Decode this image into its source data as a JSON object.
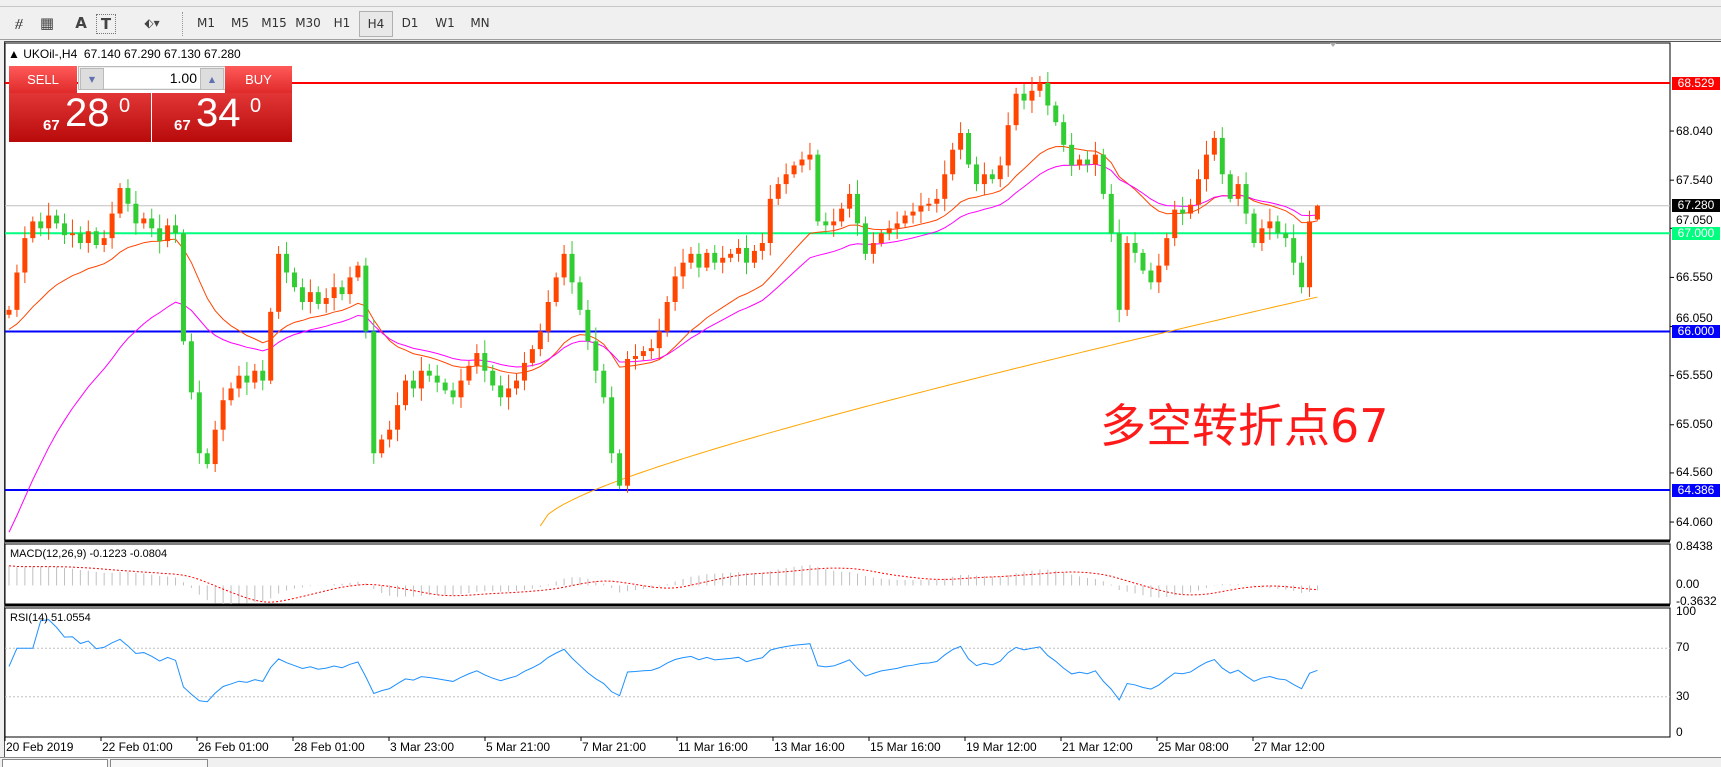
{
  "toolbar": {
    "tools": [
      {
        "name": "fibonacci-expansion-icon",
        "glyph": "⧣"
      },
      {
        "name": "fibonacci-fan-icon",
        "glyph": "▦"
      },
      {
        "name": "text-icon",
        "glyph": "A"
      },
      {
        "name": "text-label-icon",
        "glyph": "T"
      },
      {
        "name": "arrows-icon",
        "glyph": "⬖▾"
      }
    ],
    "timeframes": [
      "M1",
      "M5",
      "M15",
      "M30",
      "H1",
      "H4",
      "D1",
      "W1",
      "MN"
    ],
    "active_timeframe": "H4"
  },
  "chart": {
    "title": "UKOil-,H4  67.140 67.290 67.130 67.280",
    "symbol": "UKOil-",
    "timeframe": "H4",
    "ohlc": {
      "open": 67.14,
      "high": 67.29,
      "low": 67.13,
      "close": 67.28
    },
    "annotation": "多空转折点67",
    "annotation_color": "#ff1a1a",
    "price_ticks": [
      "68.040",
      "67.540",
      "67.050",
      "66.550",
      "66.050",
      "65.550",
      "65.050",
      "64.560",
      "64.060"
    ],
    "hlines": [
      {
        "price": 68.529,
        "label": "68.529",
        "color": "#ff0000"
      },
      {
        "price": 67.28,
        "label": "67.280",
        "color": "#c0c0c0",
        "tag_color": "#000000"
      },
      {
        "price": 67.0,
        "label": "67.000",
        "color": "#00ff7f"
      },
      {
        "price": 66.0,
        "label": "66.000",
        "color": "#0000ff"
      },
      {
        "price": 64.386,
        "label": "64.386",
        "color": "#0000ff"
      }
    ],
    "colors": {
      "up": "#ff4500",
      "down": "#32cd32",
      "ma_fast": "#ff4500",
      "ma_mid": "#ff00ff",
      "ma_slow": "#ffa500"
    },
    "closes": [
      66.22,
      66.6,
      66.95,
      67.12,
      67.05,
      67.18,
      67.1,
      66.98,
      67.0,
      66.9,
      67.02,
      66.88,
      66.95,
      67.2,
      67.46,
      67.3,
      67.1,
      67.15,
      67.05,
      66.92,
      67.08,
      67.0,
      65.9,
      65.38,
      64.76,
      64.65,
      65.0,
      65.3,
      65.42,
      65.55,
      65.48,
      65.6,
      65.5,
      66.2,
      66.79,
      66.6,
      66.45,
      66.3,
      66.4,
      66.28,
      66.34,
      66.45,
      66.38,
      66.55,
      66.67,
      66.0,
      64.76,
      64.9,
      65.0,
      65.25,
      65.5,
      65.42,
      65.6,
      65.55,
      65.48,
      65.4,
      65.33,
      65.5,
      65.65,
      65.78,
      65.6,
      65.45,
      65.33,
      65.42,
      65.5,
      65.68,
      65.82,
      66.0,
      66.3,
      66.55,
      66.79,
      66.5,
      66.22,
      65.9,
      65.6,
      65.33,
      64.76,
      64.43,
      65.72,
      65.75,
      65.8,
      65.83,
      66.0,
      66.3,
      66.56,
      66.7,
      66.79,
      66.65,
      66.8,
      66.7,
      66.75,
      66.79,
      66.85,
      66.7,
      66.82,
      66.9,
      67.35,
      67.5,
      67.6,
      67.69,
      67.75,
      67.8,
      67.12,
      67.08,
      67.12,
      67.25,
      67.4,
      67.1,
      66.79,
      66.9,
      67.0,
      67.05,
      67.1,
      67.18,
      67.22,
      67.28,
      67.3,
      67.35,
      67.6,
      67.85,
      68.02,
      67.7,
      67.5,
      67.6,
      67.55,
      67.69,
      68.1,
      68.42,
      68.35,
      68.45,
      68.53,
      68.3,
      68.13,
      67.9,
      67.69,
      67.75,
      67.7,
      67.8,
      67.4,
      67.0,
      66.22,
      66.9,
      66.8,
      66.62,
      66.5,
      66.67,
      66.95,
      67.24,
      67.2,
      67.29,
      67.55,
      67.8,
      67.97,
      67.6,
      67.35,
      67.5,
      67.2,
      66.9,
      67.05,
      67.12,
      67.0,
      66.95,
      66.7,
      66.45,
      67.12,
      67.28
    ]
  },
  "trade_panel": {
    "sell_label": "SELL",
    "buy_label": "BUY",
    "lot": "1.00",
    "sell_price_prefix": "67",
    "sell_price_big": "28",
    "sell_price_sup": "0",
    "buy_price_prefix": "67",
    "buy_price_big": "34",
    "buy_price_sup": "0"
  },
  "macd": {
    "label": "MACD(12,26,9) -0.1223 -0.0804",
    "ticks": [
      "0.8438",
      "0.00",
      "-0.3632"
    ],
    "max": 0.8438,
    "min": -0.3632,
    "hist_color": "#c0c0c0",
    "signal_color": "#ff0000"
  },
  "rsi": {
    "label": "RSI(14) 51.0554",
    "ticks": [
      "100",
      "70",
      "30",
      "0"
    ],
    "levels": [
      70,
      30
    ],
    "color": "#1e90ff"
  },
  "time_axis": [
    "20 Feb 2019",
    "22 Feb 01:00",
    "26 Feb 01:00",
    "28 Feb 01:00",
    "3 Mar 23:00",
    "5 Mar 21:00",
    "7 Mar 21:00",
    "11 Mar 16:00",
    "13 Mar 16:00",
    "15 Mar 16:00",
    "19 Mar 12:00",
    "21 Mar 12:00",
    "25 Mar 08:00",
    "27 Mar 12:00"
  ]
}
